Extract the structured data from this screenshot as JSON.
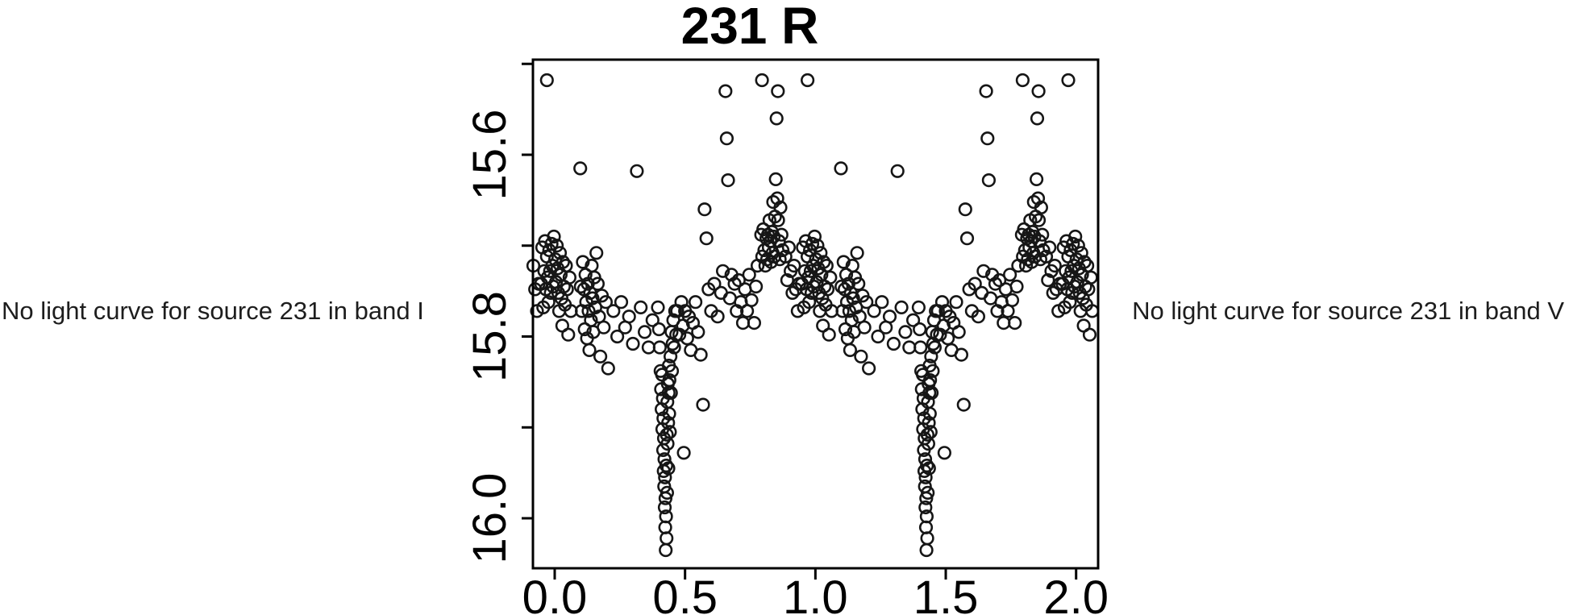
{
  "figure": {
    "title": "231 R",
    "left_panel_text": "No light curve for source 231 in band I",
    "right_panel_text": "No light curve for source 231 in band V"
  },
  "colors": {
    "background": "#ffffff",
    "axis": "#000000",
    "marker": "#161616",
    "side_text": "#1d1d1d"
  },
  "chart_data": {
    "type": "scatter",
    "title": "231 R",
    "xlabel": "",
    "ylabel": "",
    "grid": false,
    "legend": null,
    "x_axis": {
      "range": [
        -0.084,
        2.084
      ],
      "ticks": [
        {
          "value": 0.0,
          "label": "0.0"
        },
        {
          "value": 0.5,
          "label": "0.5"
        },
        {
          "value": 1.0,
          "label": "1.0"
        },
        {
          "value": 1.5,
          "label": "1.5"
        },
        {
          "value": 2.0,
          "label": "2.0"
        }
      ]
    },
    "y_axis": {
      "inverted": true,
      "range": [
        16.055,
        15.495
      ],
      "ticks": [
        {
          "value": 15.5,
          "label": ""
        },
        {
          "value": 15.6,
          "label": "15.6"
        },
        {
          "value": 15.7,
          "label": ""
        },
        {
          "value": 15.8,
          "label": "15.8"
        },
        {
          "value": 15.9,
          "label": ""
        },
        {
          "value": 16.0,
          "label": "16.0"
        }
      ]
    },
    "marker": {
      "shape": "open-circle",
      "radius_px": 7.3,
      "stroke_px": 2.6
    },
    "plotting_note": "phased light curve; each (phase, magnitude) point is repeated at phase-1, phase, phase+1 and phase+2 when inside the x range",
    "points": [
      [
        0.948,
        15.742
      ],
      [
        0.952,
        15.702
      ],
      [
        0.956,
        15.768
      ],
      [
        0.96,
        15.728
      ],
      [
        0.963,
        15.695
      ],
      [
        0.966,
        15.748
      ],
      [
        0.97,
        15.518
      ],
      [
        0.97,
        15.712
      ],
      [
        0.973,
        15.735
      ],
      [
        0.976,
        15.762
      ],
      [
        0.979,
        15.705
      ],
      [
        0.982,
        15.728
      ],
      [
        0.985,
        15.752
      ],
      [
        0.988,
        15.698
      ],
      [
        0.991,
        15.722
      ],
      [
        0.994,
        15.745
      ],
      [
        0.997,
        15.69
      ],
      [
        0.002,
        15.715
      ],
      [
        0.005,
        15.74
      ],
      [
        0.008,
        15.7
      ],
      [
        0.011,
        15.725
      ],
      [
        0.014,
        15.752
      ],
      [
        0.017,
        15.772
      ],
      [
        0.02,
        15.708
      ],
      [
        0.023,
        15.732
      ],
      [
        0.026,
        15.758
      ],
      [
        0.029,
        15.788
      ],
      [
        0.032,
        15.718
      ],
      [
        0.035,
        15.745
      ],
      [
        0.039,
        15.765
      ],
      [
        0.043,
        15.722
      ],
      [
        0.047,
        15.748
      ],
      [
        0.052,
        15.798
      ],
      [
        0.057,
        15.735
      ],
      [
        0.062,
        15.772
      ],
      [
        0.098,
        15.615
      ],
      [
        0.1,
        15.745
      ],
      [
        0.104,
        15.772
      ],
      [
        0.108,
        15.718
      ],
      [
        0.112,
        15.748
      ],
      [
        0.115,
        15.792
      ],
      [
        0.118,
        15.732
      ],
      [
        0.121,
        15.762
      ],
      [
        0.124,
        15.802
      ],
      [
        0.127,
        15.742
      ],
      [
        0.13,
        15.772
      ],
      [
        0.133,
        15.815
      ],
      [
        0.136,
        15.752
      ],
      [
        0.139,
        15.782
      ],
      [
        0.142,
        15.722
      ],
      [
        0.145,
        15.758
      ],
      [
        0.148,
        15.795
      ],
      [
        0.152,
        15.735
      ],
      [
        0.156,
        15.768
      ],
      [
        0.16,
        15.708
      ],
      [
        0.165,
        15.742
      ],
      [
        0.17,
        15.778
      ],
      [
        0.175,
        15.822
      ],
      [
        0.181,
        15.755
      ],
      [
        0.188,
        15.79
      ],
      [
        0.196,
        15.762
      ],
      [
        0.205,
        15.835
      ],
      [
        0.225,
        15.772
      ],
      [
        0.24,
        15.8
      ],
      [
        0.255,
        15.762
      ],
      [
        0.27,
        15.79
      ],
      [
        0.285,
        15.778
      ],
      [
        0.3,
        15.808
      ],
      [
        0.315,
        15.618
      ],
      [
        0.33,
        15.768
      ],
      [
        0.345,
        15.795
      ],
      [
        0.36,
        15.812
      ],
      [
        0.375,
        15.782
      ],
      [
        0.396,
        15.768
      ],
      [
        0.4,
        15.792
      ],
      [
        0.403,
        15.812
      ],
      [
        0.406,
        15.838
      ],
      [
        0.408,
        15.858
      ],
      [
        0.41,
        15.88
      ],
      [
        0.412,
        15.842
      ],
      [
        0.413,
        15.902
      ],
      [
        0.415,
        15.868
      ],
      [
        0.416,
        15.925
      ],
      [
        0.417,
        15.89
      ],
      [
        0.418,
        15.948
      ],
      [
        0.419,
        15.912
      ],
      [
        0.42,
        15.965
      ],
      [
        0.421,
        15.935
      ],
      [
        0.422,
        15.988
      ],
      [
        0.423,
        15.955
      ],
      [
        0.424,
        16.01
      ],
      [
        0.425,
        15.978
      ],
      [
        0.426,
        16.035
      ],
      [
        0.427,
        15.998
      ],
      [
        0.428,
        15.942
      ],
      [
        0.429,
        16.022
      ],
      [
        0.43,
        15.908
      ],
      [
        0.431,
        15.972
      ],
      [
        0.432,
        15.872
      ],
      [
        0.433,
        15.918
      ],
      [
        0.434,
        15.852
      ],
      [
        0.435,
        15.895
      ],
      [
        0.436,
        15.945
      ],
      [
        0.437,
        15.862
      ],
      [
        0.438,
        15.832
      ],
      [
        0.439,
        15.885
      ],
      [
        0.44,
        15.848
      ],
      [
        0.442,
        15.905
      ],
      [
        0.444,
        15.822
      ],
      [
        0.446,
        15.862
      ],
      [
        0.448,
        15.795
      ],
      [
        0.45,
        15.838
      ],
      [
        0.452,
        15.808
      ],
      [
        0.455,
        15.782
      ],
      [
        0.458,
        15.812
      ],
      [
        0.462,
        15.772
      ],
      [
        0.466,
        15.798
      ],
      [
        0.47,
        15.772
      ],
      [
        0.478,
        15.798
      ],
      [
        0.486,
        15.762
      ],
      [
        0.492,
        15.788
      ],
      [
        0.495,
        15.928
      ],
      [
        0.5,
        15.772
      ],
      [
        0.508,
        15.802
      ],
      [
        0.515,
        15.778
      ],
      [
        0.522,
        15.815
      ],
      [
        0.53,
        15.785
      ],
      [
        0.54,
        15.762
      ],
      [
        0.55,
        15.795
      ],
      [
        0.56,
        15.82
      ],
      [
        0.569,
        15.875
      ],
      [
        0.575,
        15.66
      ],
      [
        0.582,
        15.692
      ],
      [
        0.59,
        15.748
      ],
      [
        0.6,
        15.772
      ],
      [
        0.612,
        15.742
      ],
      [
        0.625,
        15.778
      ],
      [
        0.638,
        15.752
      ],
      [
        0.645,
        15.728
      ],
      [
        0.655,
        15.53
      ],
      [
        0.66,
        15.582
      ],
      [
        0.665,
        15.628
      ],
      [
        0.672,
        15.758
      ],
      [
        0.678,
        15.732
      ],
      [
        0.69,
        15.742
      ],
      [
        0.698,
        15.772
      ],
      [
        0.706,
        15.738
      ],
      [
        0.714,
        15.762
      ],
      [
        0.722,
        15.785
      ],
      [
        0.73,
        15.748
      ],
      [
        0.738,
        15.772
      ],
      [
        0.746,
        15.732
      ],
      [
        0.755,
        15.76
      ],
      [
        0.765,
        15.785
      ],
      [
        0.772,
        15.745
      ],
      [
        0.778,
        15.722
      ],
      [
        0.792,
        15.688
      ],
      [
        0.795,
        15.518
      ],
      [
        0.796,
        15.712
      ],
      [
        0.8,
        15.682
      ],
      [
        0.804,
        15.705
      ],
      [
        0.808,
        15.722
      ],
      [
        0.812,
        15.692
      ],
      [
        0.815,
        15.715
      ],
      [
        0.818,
        15.688
      ],
      [
        0.821,
        15.702
      ],
      [
        0.824,
        15.672
      ],
      [
        0.827,
        15.695
      ],
      [
        0.83,
        15.718
      ],
      [
        0.833,
        15.685
      ],
      [
        0.836,
        15.708
      ],
      [
        0.838,
        15.652
      ],
      [
        0.84,
        15.69
      ],
      [
        0.843,
        15.712
      ],
      [
        0.845,
        15.668
      ],
      [
        0.848,
        15.627
      ],
      [
        0.851,
        15.56
      ],
      [
        0.854,
        15.648
      ],
      [
        0.856,
        15.53
      ],
      [
        0.857,
        15.672
      ],
      [
        0.86,
        15.695
      ],
      [
        0.863,
        15.715
      ],
      [
        0.866,
        15.658
      ],
      [
        0.87,
        15.688
      ],
      [
        0.874,
        15.705
      ],
      [
        0.885,
        15.712
      ],
      [
        0.892,
        15.738
      ],
      [
        0.898,
        15.702
      ],
      [
        0.905,
        15.728
      ],
      [
        0.912,
        15.752
      ],
      [
        0.918,
        15.722
      ],
      [
        0.925,
        15.748
      ],
      [
        0.932,
        15.772
      ],
      [
        0.938,
        15.742
      ]
    ]
  }
}
